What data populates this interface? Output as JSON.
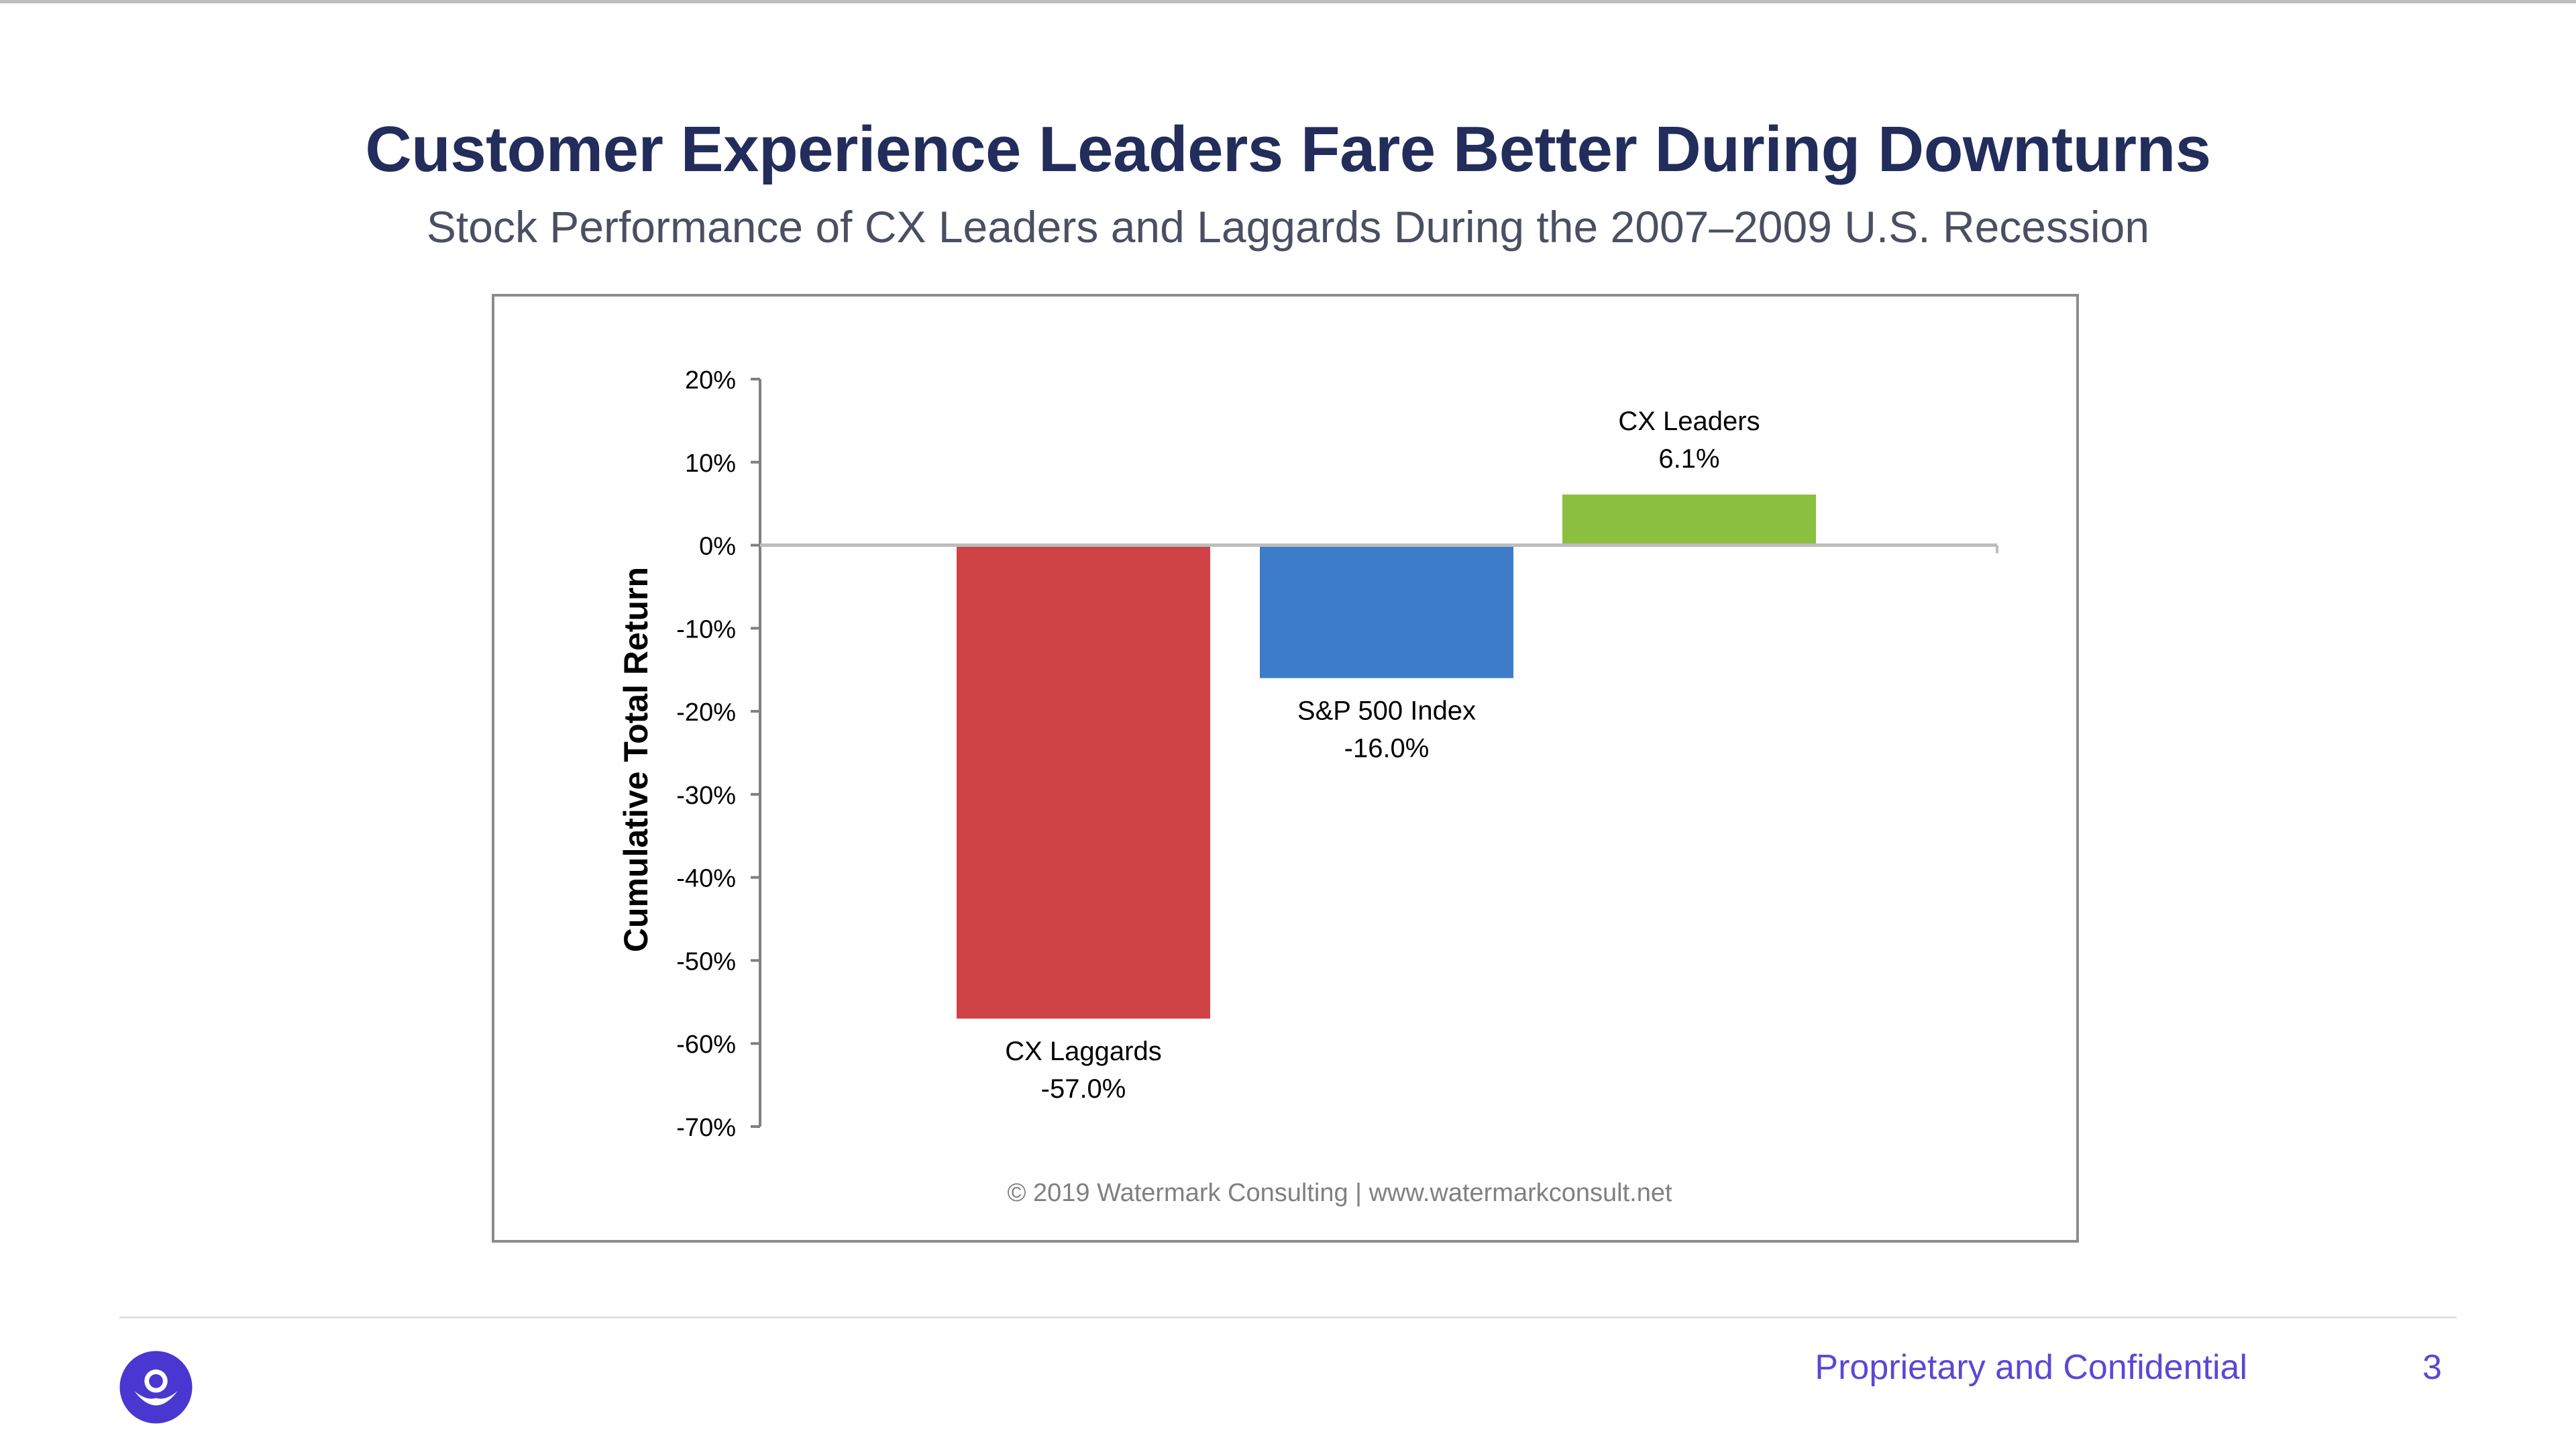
{
  "slide": {
    "title": "Customer Experience Leaders Fare Better During Downturns",
    "subtitle": "Stock Performance of CX Leaders and Laggards During the 2007–2009 U.S. Recession",
    "footer": "Proprietary and Confidential",
    "page_number": "3",
    "accent_color": "#5a48d6",
    "title_color": "#232d5c",
    "logo_icon": "logo-icon"
  },
  "chart_data": {
    "type": "bar",
    "ylabel": "Cumulative Total Return",
    "xlabel": "",
    "ylim": [
      -70,
      20
    ],
    "yticks": [
      "20%",
      "10%",
      "0%",
      "-10%",
      "-20%",
      "-30%",
      "-40%",
      "-50%",
      "-60%",
      "-70%"
    ],
    "ytick_values": [
      20,
      10,
      0,
      -10,
      -20,
      -30,
      -40,
      -50,
      -60,
      -70
    ],
    "categories": [
      "CX Laggards",
      "S&P 500 Index",
      "CX Leaders"
    ],
    "values": [
      -57.0,
      -16.0,
      6.1
    ],
    "value_labels": [
      "-57.0%",
      "-16.0%",
      "6.1%"
    ],
    "colors": [
      "#cf4347",
      "#3d7cc9",
      "#8bbf3f"
    ],
    "grid": false,
    "legend": "none",
    "source_note": "© 2019 Watermark Consulting | www.watermarkconsult.net"
  }
}
